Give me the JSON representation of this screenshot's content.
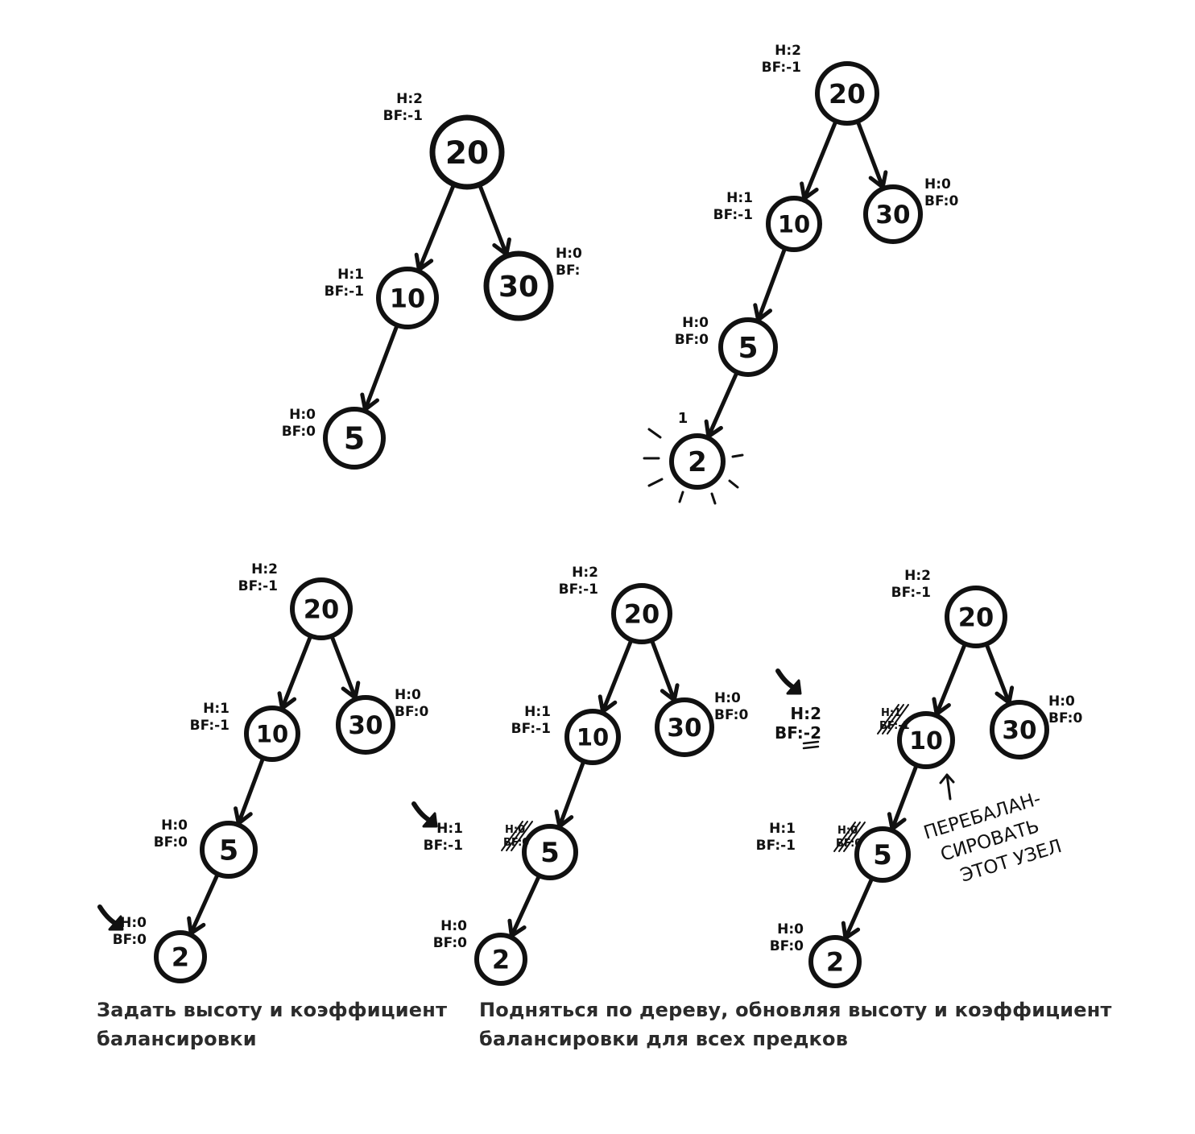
{
  "trees": [
    {
      "id": "tree-1",
      "nodes": [
        {
          "key": "20",
          "h": "H:2",
          "bf": "BF:-1"
        },
        {
          "key": "10",
          "h": "H:1",
          "bf": "BF:-1"
        },
        {
          "key": "30",
          "h": "H:0",
          "bf": "BF:"
        },
        {
          "key": "5",
          "h": "H:0",
          "bf": "BF:0"
        }
      ]
    },
    {
      "id": "tree-2",
      "nodes": [
        {
          "key": "20",
          "h": "H:2",
          "bf": "BF:-1"
        },
        {
          "key": "10",
          "h": "H:1",
          "bf": "BF:-1"
        },
        {
          "key": "30",
          "h": "H:0",
          "bf": "BF:0"
        },
        {
          "key": "5",
          "h": "H:0",
          "bf": "BF:0"
        },
        {
          "key": "2",
          "h": "1",
          "bf": ""
        }
      ]
    },
    {
      "id": "tree-3",
      "nodes": [
        {
          "key": "20",
          "h": "H:2",
          "bf": "BF:-1"
        },
        {
          "key": "10",
          "h": "H:1",
          "bf": "BF:-1"
        },
        {
          "key": "30",
          "h": "H:0",
          "bf": "BF:0"
        },
        {
          "key": "5",
          "h": "H:0",
          "bf": "BF:0"
        },
        {
          "key": "2",
          "h": "H:0",
          "bf": "BF:0"
        }
      ]
    },
    {
      "id": "tree-4",
      "nodes": [
        {
          "key": "20",
          "h": "H:2",
          "bf": "BF:-1"
        },
        {
          "key": "10",
          "h": "H:1",
          "bf": "BF:-1"
        },
        {
          "key": "30",
          "h": "H:0",
          "bf": "BF:0"
        },
        {
          "key": "5",
          "h": "H:1",
          "bf": "BF:-1",
          "old_h": "H:0",
          "old_bf": "BF:0"
        },
        {
          "key": "2",
          "h": "H:0",
          "bf": "BF:0"
        }
      ]
    },
    {
      "id": "tree-5",
      "nodes": [
        {
          "key": "20",
          "h": "H:2",
          "bf": "BF:-1"
        },
        {
          "key": "10",
          "h": "H:2",
          "bf": "BF:-2",
          "old_h": "H:1",
          "old_bf": "BF:-1"
        },
        {
          "key": "30",
          "h": "H:0",
          "bf": "BF:0"
        },
        {
          "key": "5",
          "h": "H:1",
          "bf": "BF:-1",
          "old_h": "H:0",
          "old_bf": "BF:0"
        },
        {
          "key": "2",
          "h": "H:0",
          "bf": "BF:0"
        }
      ]
    }
  ],
  "rebalance_note": [
    "ПЕРЕБАЛАН-",
    "СИРОВАТЬ",
    "ЭТОТ УЗЕЛ"
  ],
  "captions": {
    "left": [
      "Задать высоту и коэффициент",
      "балансировки"
    ],
    "right": [
      "Подняться по дереву, обновляя высоту и коэффициент",
      "балансировки для всех предков"
    ]
  }
}
